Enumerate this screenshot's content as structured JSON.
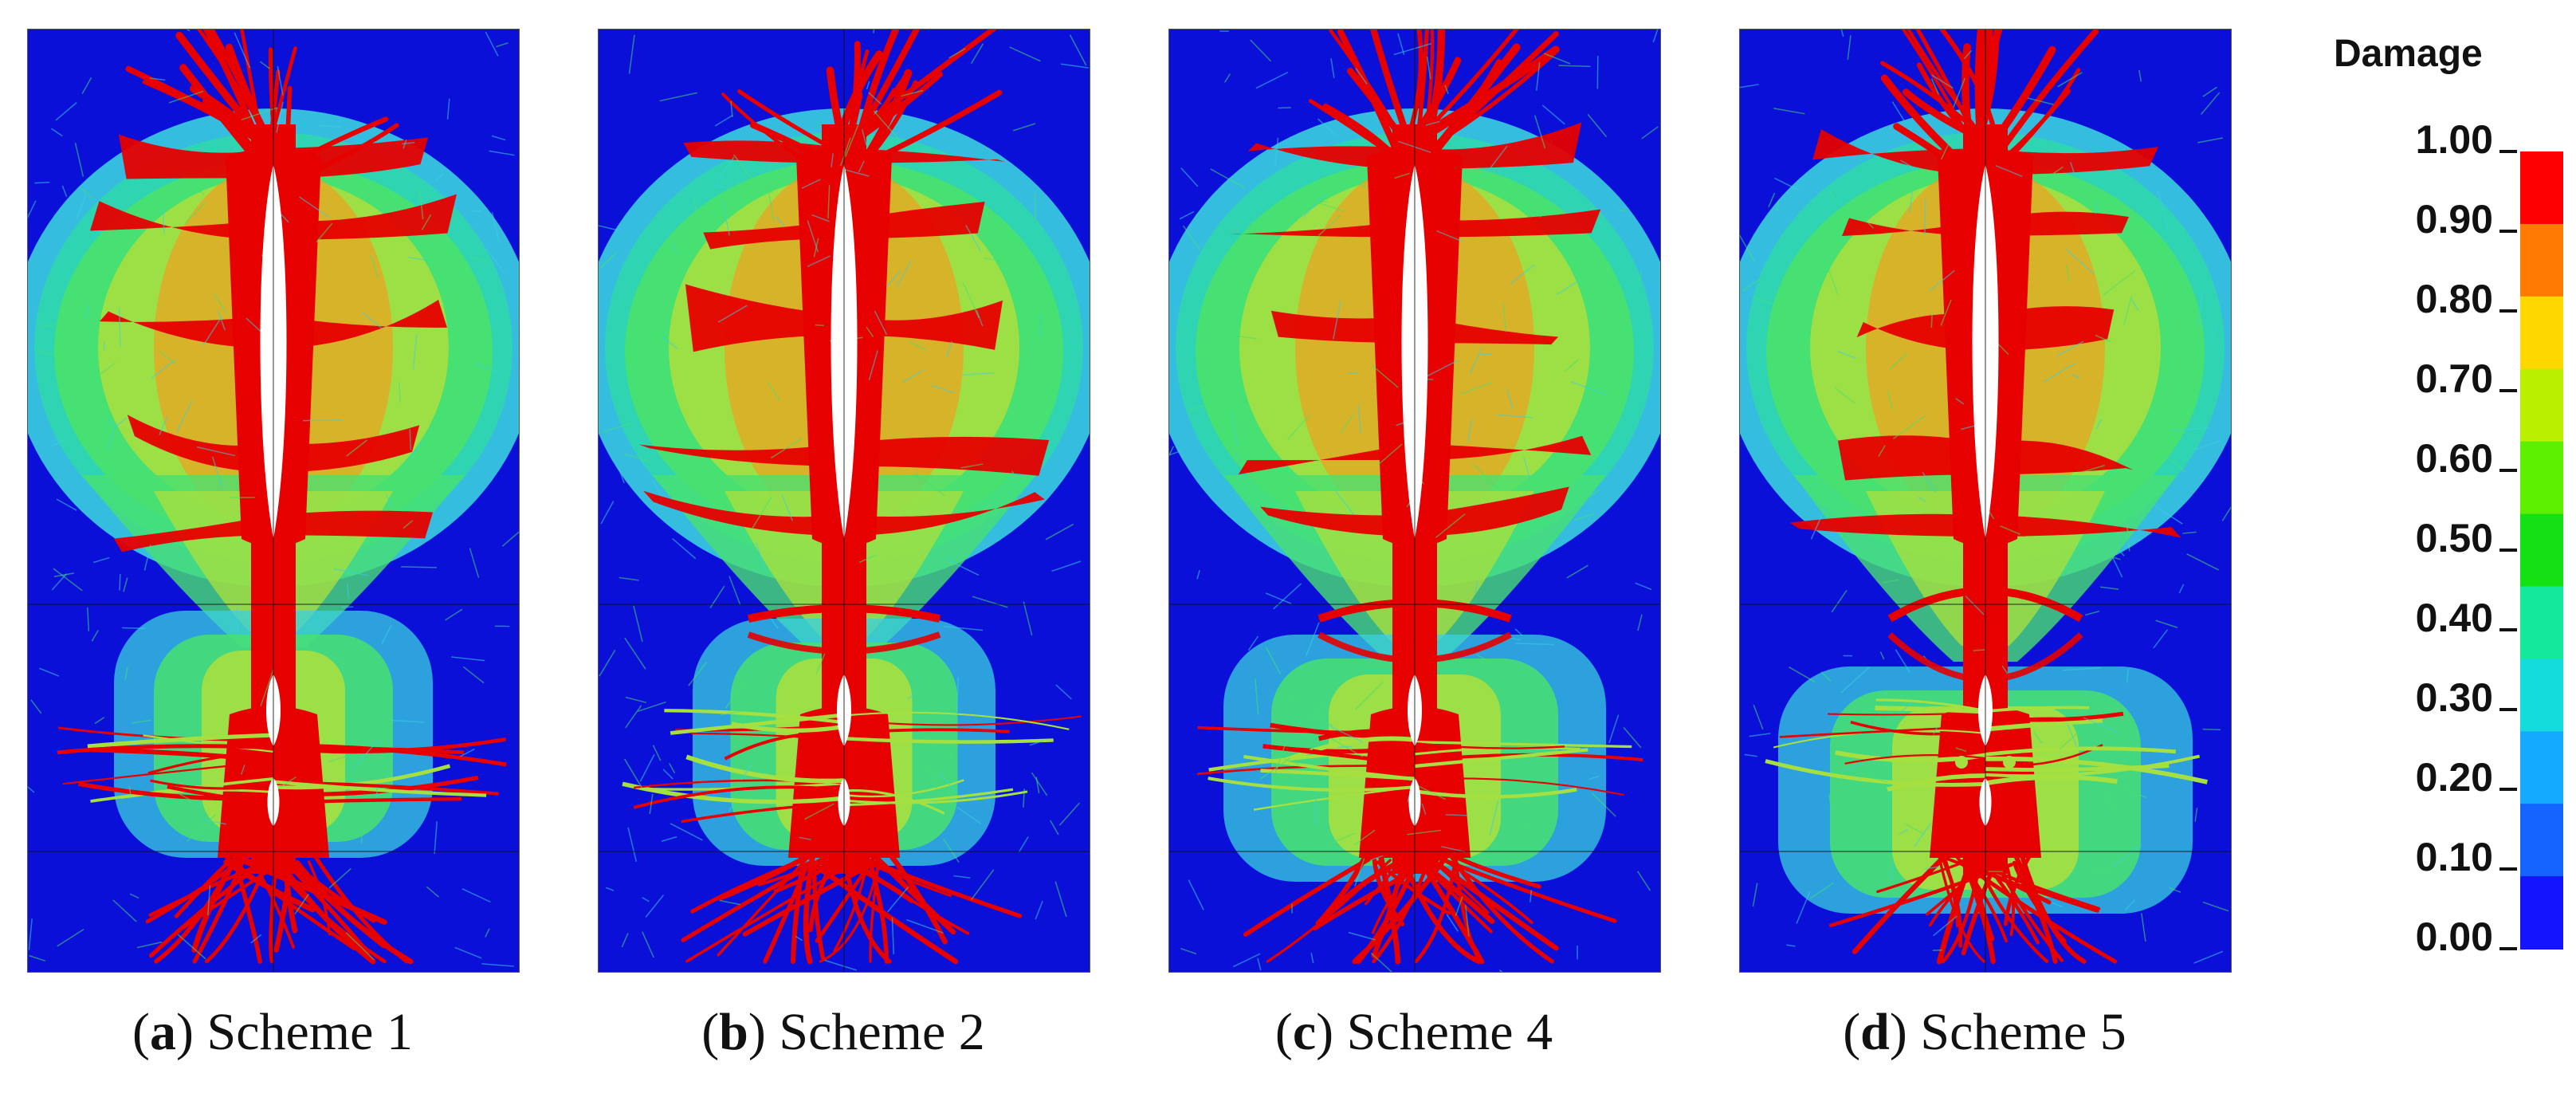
{
  "figure": {
    "panels": [
      {
        "letter": "a",
        "label": "Scheme 1",
        "variant": 1
      },
      {
        "letter": "b",
        "label": "Scheme 2",
        "variant": 2
      },
      {
        "letter": "c",
        "label": "Scheme 4",
        "variant": 3
      },
      {
        "letter": "d",
        "label": "Scheme 5",
        "variant": 4
      }
    ],
    "legend": {
      "title": "Damage",
      "ticks": [
        "1.00",
        "0.90",
        "0.80",
        "0.70",
        "0.60",
        "0.50",
        "0.40",
        "0.30",
        "0.20",
        "0.10",
        "0.00"
      ],
      "colors_top_to_bottom": [
        "#ff0000",
        "#ff7a00",
        "#ffd800",
        "#b8f000",
        "#5cf000",
        "#14e014",
        "#14e89a",
        "#14dcdc",
        "#14aaff",
        "#1465ff",
        "#1414ff"
      ]
    },
    "field_colors": {
      "background": "#0a10d8",
      "light": "#3ad0e0",
      "mid": "#48e070",
      "yellowgreen": "#a6e040",
      "orange": "#f0a020",
      "red": "#e60000"
    }
  }
}
